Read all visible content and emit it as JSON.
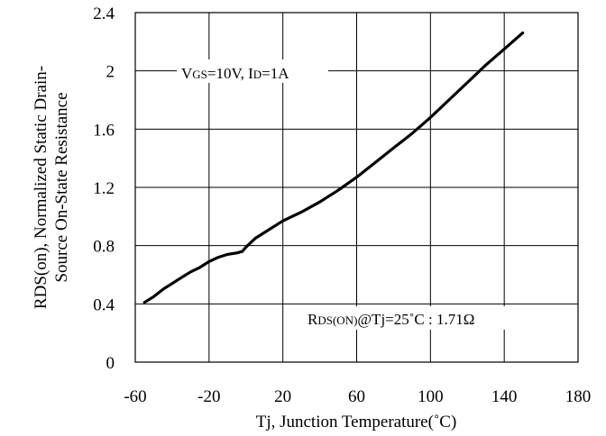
{
  "chart_data": {
    "type": "line",
    "xlabel": "Tj, Junction Temperature(˚C)",
    "ylabel_line1": "RDS(on), Normalized Static Drain-",
    "ylabel_line2": "Source On-State Resistance",
    "xlim": [
      -60,
      180
    ],
    "ylim": [
      0,
      2.4
    ],
    "xticks": [
      -60,
      -20,
      20,
      60,
      100,
      140,
      180
    ],
    "xtick_labels": [
      "-60",
      "-20",
      "20",
      "60",
      "100",
      "140",
      "180"
    ],
    "yticks": [
      0,
      0.4,
      0.8,
      1.2,
      1.6,
      2,
      2.4
    ],
    "ytick_labels": [
      "0",
      "0.4",
      "0.8",
      "1.2",
      "1.6",
      "2",
      "2.4"
    ],
    "grid": true,
    "series": [
      {
        "x": [
          -55,
          -50,
          -45,
          -40,
          -35,
          -30,
          -25,
          -20,
          -15,
          -10,
          -5,
          -2,
          0,
          5,
          10,
          15,
          20,
          25,
          30,
          40,
          50,
          60,
          70,
          80,
          90,
          100,
          110,
          120,
          130,
          140,
          150
        ],
        "y": [
          0.41,
          0.45,
          0.5,
          0.54,
          0.58,
          0.62,
          0.65,
          0.69,
          0.72,
          0.74,
          0.75,
          0.76,
          0.79,
          0.85,
          0.89,
          0.93,
          0.97,
          1.0,
          1.03,
          1.1,
          1.18,
          1.27,
          1.37,
          1.47,
          1.57,
          1.68,
          1.8,
          1.92,
          2.04,
          2.15,
          2.26
        ]
      }
    ],
    "annotations": {
      "conditions": {
        "v_main": "V",
        "v_sub": "GS",
        "v_rest": "=10V, I",
        "i_sub": "D",
        "i_rest": "=1A"
      },
      "reference": {
        "r_main": "R",
        "r_sub": "DS(ON)",
        "r_rest": "@Tj=25˚C : 1.71Ω"
      }
    }
  }
}
